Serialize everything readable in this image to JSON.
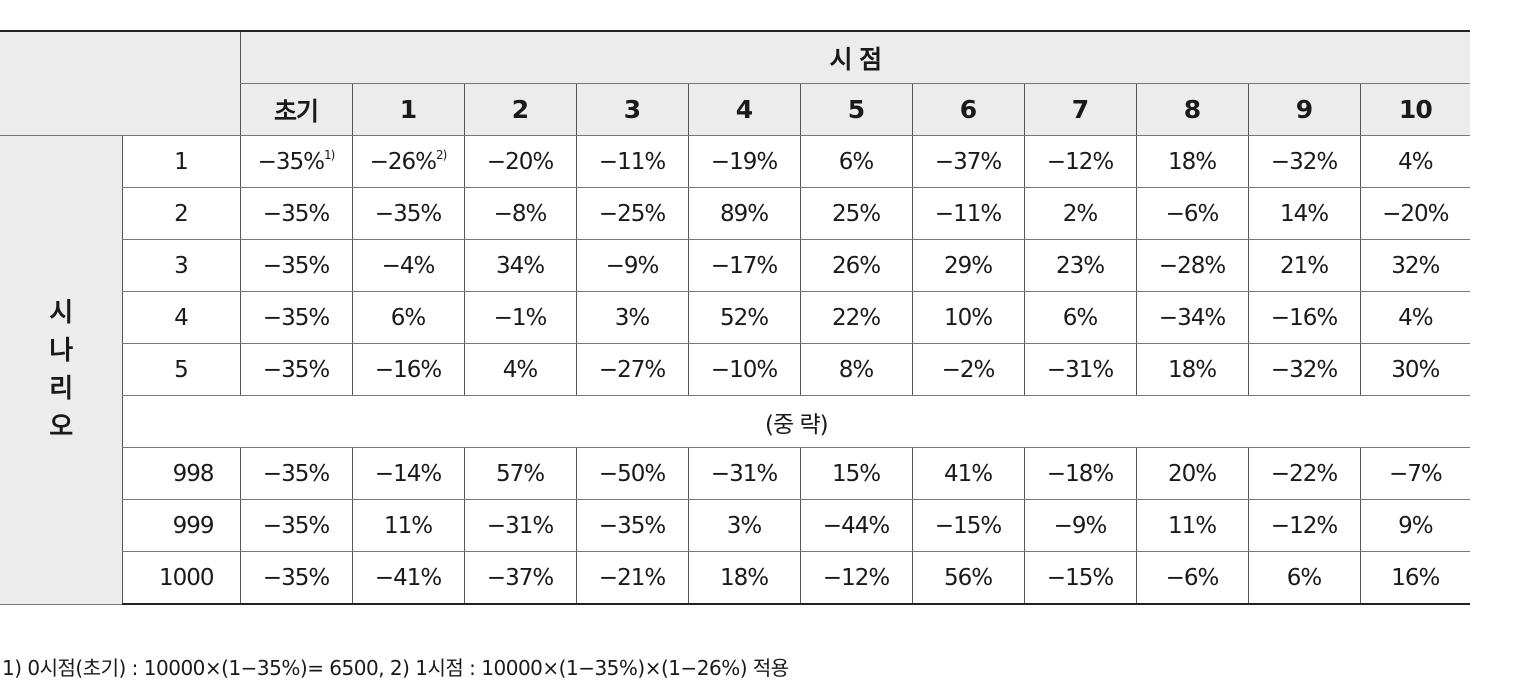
{
  "header": {
    "top_label": "시 점",
    "columns": [
      "초기",
      "1",
      "2",
      "3",
      "4",
      "5",
      "6",
      "7",
      "8",
      "9",
      "10"
    ]
  },
  "side_label": "시\n나\n리\n오",
  "rows": [
    {
      "label": "1",
      "values": [
        "−35%",
        "−26%",
        "−20%",
        "−11%",
        "−19%",
        "6%",
        "−37%",
        "−12%",
        "18%",
        "−32%",
        "4%"
      ]
    },
    {
      "label": "2",
      "values": [
        "−35%",
        "−35%",
        "−8%",
        "−25%",
        "89%",
        "25%",
        "−11%",
        "2%",
        "−6%",
        "14%",
        "−20%"
      ]
    },
    {
      "label": "3",
      "values": [
        "−35%",
        "−4%",
        "34%",
        "−9%",
        "−17%",
        "26%",
        "29%",
        "23%",
        "−28%",
        "21%",
        "32%"
      ]
    },
    {
      "label": "4",
      "values": [
        "−35%",
        "6%",
        "−1%",
        "3%",
        "52%",
        "22%",
        "10%",
        "6%",
        "−34%",
        "−16%",
        "4%"
      ]
    },
    {
      "label": "5",
      "values": [
        "−35%",
        "−16%",
        "4%",
        "−27%",
        "−10%",
        "8%",
        "−2%",
        "−31%",
        "18%",
        "−32%",
        "30%"
      ]
    }
  ],
  "omitted_label": "(중 략)",
  "rows_after": [
    {
      "label": "998",
      "values": [
        "−35%",
        "−14%",
        "57%",
        "−50%",
        "−31%",
        "15%",
        "41%",
        "−18%",
        "20%",
        "−22%",
        "−7%"
      ]
    },
    {
      "label": "999",
      "values": [
        "−35%",
        "11%",
        "−31%",
        "−35%",
        "3%",
        "−44%",
        "−15%",
        "−9%",
        "11%",
        "−12%",
        "9%"
      ]
    },
    {
      "label": "1000",
      "values": [
        "−35%",
        "−41%",
        "−37%",
        "−21%",
        "18%",
        "−12%",
        "56%",
        "−15%",
        "−6%",
        "6%",
        "16%"
      ]
    }
  ],
  "footnote_marks": [
    "1)",
    "2)"
  ],
  "footnote": "1) 0시점(초기) : 10000×(1−35%)= 6500, 2) 1시점 : 10000×(1−35%)×(1−26%) 적용"
}
